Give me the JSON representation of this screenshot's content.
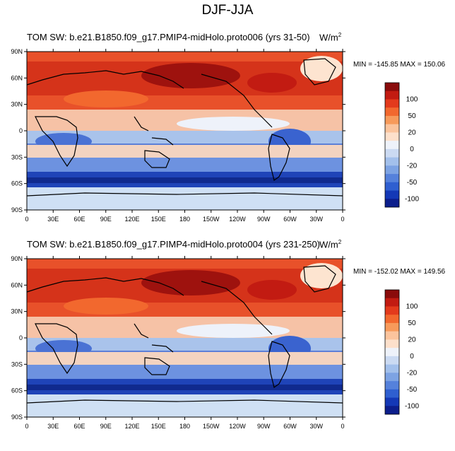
{
  "title": "DJF-JJA",
  "units": "W/m",
  "units_sup": "2",
  "lat_labels": [
    "90N",
    "60N",
    "30N",
    "0",
    "30S",
    "60S",
    "90S"
  ],
  "lon_labels": [
    "0",
    "30E",
    "60E",
    "90E",
    "120E",
    "150E",
    "180",
    "150W",
    "120W",
    "90W",
    "60W",
    "30W",
    "0"
  ],
  "colorbar": {
    "labels": [
      "100",
      "50",
      "20",
      "0",
      "-20",
      "-50",
      "-100"
    ],
    "colors": [
      "#8a0b0b",
      "#c21b12",
      "#e33a1c",
      "#f2682e",
      "#f79a5b",
      "#fbc49d",
      "#fde0cb",
      "#eef2fa",
      "#cbdaf2",
      "#a3c0eb",
      "#7da3e3",
      "#5581db",
      "#2f5fd0",
      "#1438b6",
      "#0c1e8c"
    ]
  },
  "panels": [
    {
      "title": "TOM SW: b.e21.B1850.f09_g17.PMIP4-midHolo.proto006 (yrs 31-50)",
      "overlay": "TOM SW: b.e21.B1850.f09_g17.PMIP4-midHolo.proto006",
      "minmax": "MIN = -145.85 MAX = 150.06"
    },
    {
      "title": "TOM SW: b.e21.B1850.f09_g17.PIMP4-midHolo.proto004 (yrs 231-250)",
      "overlay": "TOM SW: b.e21.B1850.f09_g17.PIMP4-midHolo.proto004",
      "minmax": "MIN = -152.02 MAX = 149.56"
    }
  ]
}
